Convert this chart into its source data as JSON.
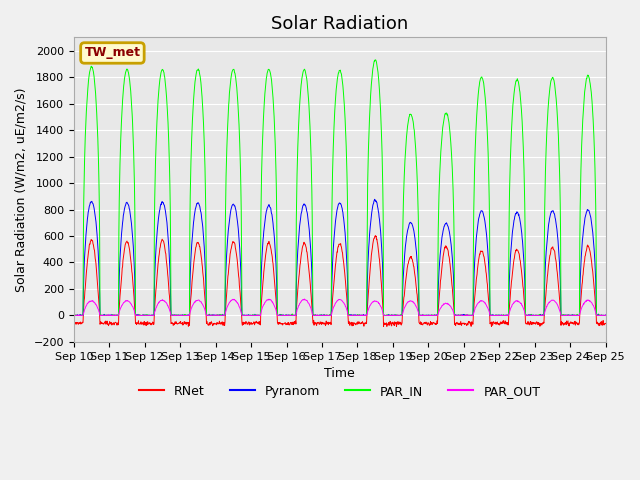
{
  "title": "Solar Radiation",
  "xlabel": "Time",
  "ylabel": "Solar Radiation (W/m2, uE/m2/s)",
  "ylim": [
    -200,
    2100
  ],
  "yticks": [
    -200,
    0,
    200,
    400,
    600,
    800,
    1000,
    1200,
    1400,
    1600,
    1800,
    2000
  ],
  "xtick_labels": [
    "Sep 10",
    "Sep 11",
    "Sep 12",
    "Sep 13",
    "Sep 14",
    "Sep 15",
    "Sep 16",
    "Sep 17",
    "Sep 18",
    "Sep 19",
    "Sep 20",
    "Sep 21",
    "Sep 22",
    "Sep 23",
    "Sep 24",
    "Sep 25"
  ],
  "site_label": "TW_met",
  "site_label_color": "#8B0000",
  "site_box_facecolor": "#FFFACD",
  "site_box_edgecolor": "#C8A000",
  "color_RNet": "#FF0000",
  "color_Pyranom": "#0000FF",
  "color_PAR_IN": "#00FF00",
  "color_PAR_OUT": "#FF00FF",
  "plot_bg_color": "#E8E8E8",
  "fig_bg_color": "#F0F0F0",
  "grid_color": "#FFFFFF",
  "title_fontsize": 13,
  "axis_fontsize": 9,
  "tick_fontsize": 8,
  "n_days": 15,
  "n_per_day": 96,
  "par_in_peaks": [
    1880,
    1860,
    1855,
    1860,
    1858,
    1860,
    1855,
    1850,
    1930,
    1520,
    1530,
    1800,
    1780,
    1795,
    1810
  ],
  "pyranom_peaks": [
    860,
    850,
    855,
    850,
    840,
    830,
    840,
    850,
    870,
    700,
    695,
    790,
    780,
    790,
    795
  ],
  "rnet_peaks": [
    570,
    560,
    570,
    550,
    555,
    550,
    545,
    540,
    600,
    440,
    520,
    490,
    500,
    515,
    520
  ],
  "par_out_peaks": [
    110,
    110,
    115,
    115,
    120,
    120,
    120,
    120,
    110,
    110,
    90,
    110,
    110,
    115,
    115
  ]
}
